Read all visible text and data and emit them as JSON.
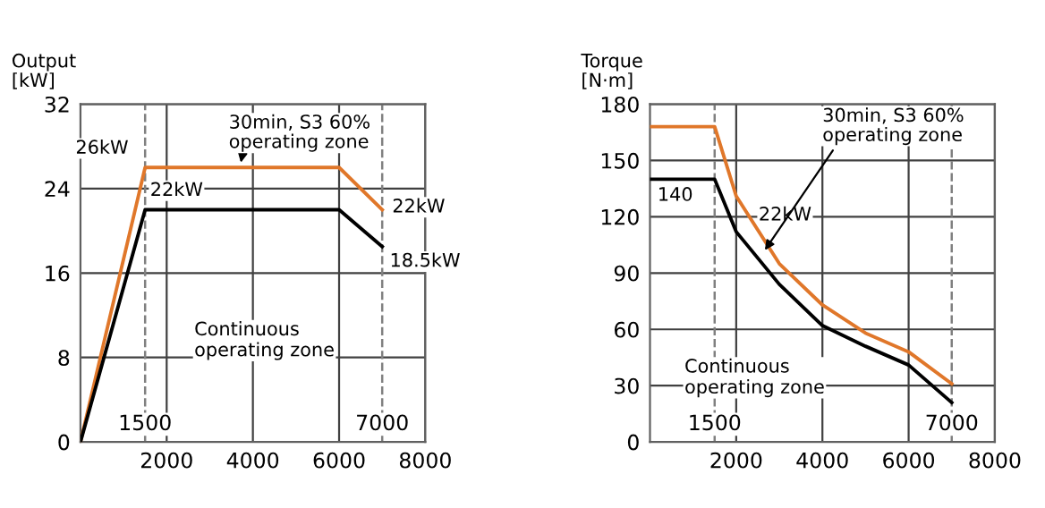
{
  "chart_data": [
    {
      "type": "line",
      "ylabel": "Output\n[kW]",
      "xlim": [
        0,
        8000
      ],
      "ylim": [
        0,
        32
      ],
      "xticks": [
        2000,
        4000,
        6000,
        8000
      ],
      "yticks": [
        0,
        8,
        16,
        24,
        32
      ],
      "grid": true,
      "marker": "none",
      "line_style": "solid",
      "series": [
        {
          "color": "#e0772a",
          "x": [
            0,
            1500,
            6000,
            7000
          ],
          "values": [
            0,
            26,
            26,
            22
          ]
        },
        {
          "color": "#000000",
          "x": [
            0,
            1500,
            6000,
            7000
          ],
          "values": [
            0,
            22,
            22,
            18.5
          ]
        }
      ],
      "ref_lines": [
        {
          "axis": "x",
          "value": 1500,
          "label": "1500",
          "color": "#808080",
          "line_style": "dashed"
        },
        {
          "axis": "x",
          "value": 7000,
          "label": "7000",
          "color": "#808080",
          "line_style": "dashed"
        }
      ],
      "annotations": [
        {
          "text": "26kW",
          "x": 1500,
          "y": 26
        },
        {
          "text": "22kW",
          "x": 1500,
          "y": 22
        },
        {
          "text": "22kW",
          "x": 7000,
          "y": 22
        },
        {
          "text": "18.5kW",
          "x": 7000,
          "y": 18.5
        },
        {
          "text": "30min, S3 60%\noperating zone",
          "x": 3700,
          "y": 26
        },
        "Continuous\noperating zone"
      ]
    },
    {
      "type": "line",
      "ylabel": "Torque\n[N·m]",
      "xlim": [
        0,
        8000
      ],
      "ylim": [
        0,
        180
      ],
      "xticks": [
        2000,
        4000,
        6000,
        8000
      ],
      "yticks": [
        0,
        30,
        60,
        90,
        120,
        150,
        180
      ],
      "grid": true,
      "marker": "none",
      "line_style": "solid",
      "series": [
        {
          "color": "#e0772a",
          "x": [
            0,
            1500,
            2000,
            3000,
            4000,
            5000,
            6000,
            7000
          ],
          "values": [
            168,
            168,
            131,
            95,
            73,
            58,
            48,
            31
          ]
        },
        {
          "color": "#000000",
          "x": [
            0,
            1500,
            2000,
            3000,
            4000,
            5000,
            6000,
            7000
          ],
          "values": [
            140,
            140,
            112,
            84,
            62,
            51,
            41,
            21
          ]
        }
      ],
      "ref_lines": [
        {
          "axis": "x",
          "value": 1500,
          "label": "1500",
          "color": "#808080",
          "line_style": "dashed"
        },
        {
          "axis": "x",
          "value": 7000,
          "label": "7000",
          "color": "#808080",
          "line_style": "dashed"
        }
      ],
      "annotations": [
        {
          "text": "140",
          "x": 0,
          "y": 140
        },
        {
          "text": "22kW",
          "x": 2000,
          "y": 112
        },
        {
          "text": "30min, S3 60%\noperating zone",
          "x": 2600,
          "y": 100
        },
        "Continuous\noperating zone"
      ]
    }
  ]
}
